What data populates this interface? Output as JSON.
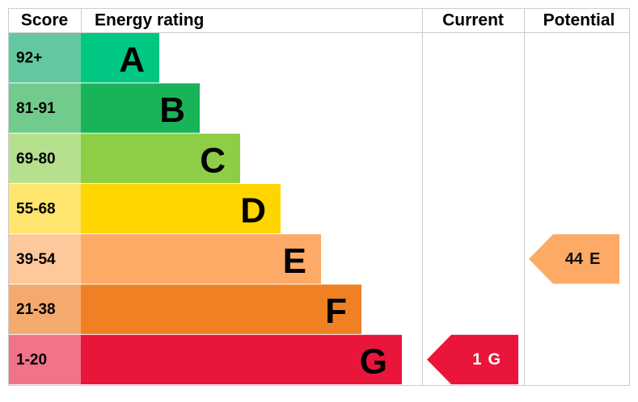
{
  "header": {
    "score": "Score",
    "rating": "Energy rating",
    "current": "Current",
    "potential": "Potential"
  },
  "bands": [
    {
      "score": "92+",
      "letter": "A",
      "color": "#00c781",
      "score_color": "#63c8a0"
    },
    {
      "score": "81-91",
      "letter": "B",
      "color": "#19b459",
      "score_color": "#70cb8c"
    },
    {
      "score": "69-80",
      "letter": "C",
      "color": "#8dce46",
      "score_color": "#b6df8e"
    },
    {
      "score": "55-68",
      "letter": "D",
      "color": "#ffd500",
      "score_color": "#ffe56d"
    },
    {
      "score": "39-54",
      "letter": "E",
      "color": "#fcaa65",
      "score_color": "#fdc89c"
    },
    {
      "score": "21-38",
      "letter": "F",
      "color": "#ef8023",
      "score_color": "#f4aa6c"
    },
    {
      "score": "1-20",
      "letter": "G",
      "color": "#e9153b",
      "score_color": "#f0738a"
    }
  ],
  "current": {
    "score": 1,
    "rating": "G"
  },
  "potential": {
    "score": 44,
    "rating": "E"
  }
}
